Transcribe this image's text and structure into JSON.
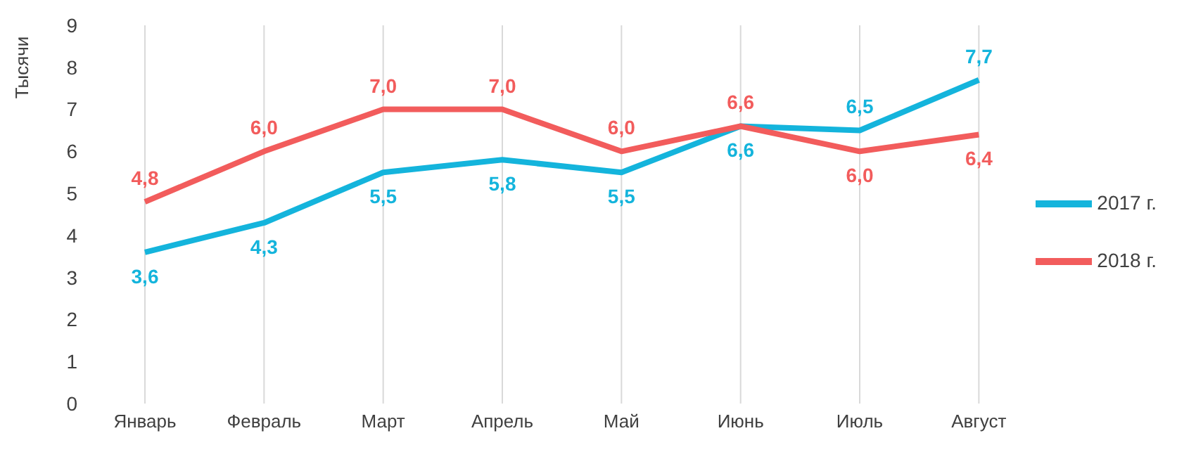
{
  "chart_data": {
    "type": "line",
    "ylabel": "Тысячи",
    "categories": [
      "Январь",
      "Февраль",
      "Март",
      "Апрель",
      "Май",
      "Июнь",
      "Июль",
      "Август"
    ],
    "series": [
      {
        "name": "2017 г.",
        "color": "#14b4dc",
        "values": [
          3.6,
          4.3,
          5.5,
          5.8,
          5.5,
          6.6,
          6.5,
          7.7
        ],
        "value_labels": [
          "3,6",
          "4,3",
          "5,5",
          "5,8",
          "5,5",
          "6,6",
          "6,5",
          "7,7"
        ]
      },
      {
        "name": "2018 г.",
        "color": "#f25c5c",
        "values": [
          4.8,
          6.0,
          7.0,
          7.0,
          6.0,
          6.6,
          6.0,
          6.4
        ],
        "value_labels": [
          "4,8",
          "6,0",
          "7,0",
          "7,0",
          "6,0",
          "6,6",
          "6,0",
          "6,4"
        ]
      }
    ],
    "ylim": [
      0,
      9
    ],
    "yticks": [
      0,
      1,
      2,
      3,
      4,
      5,
      6,
      7,
      8,
      9
    ],
    "grid": "x",
    "legend": "right",
    "marker": "none",
    "line_style": "solid"
  }
}
